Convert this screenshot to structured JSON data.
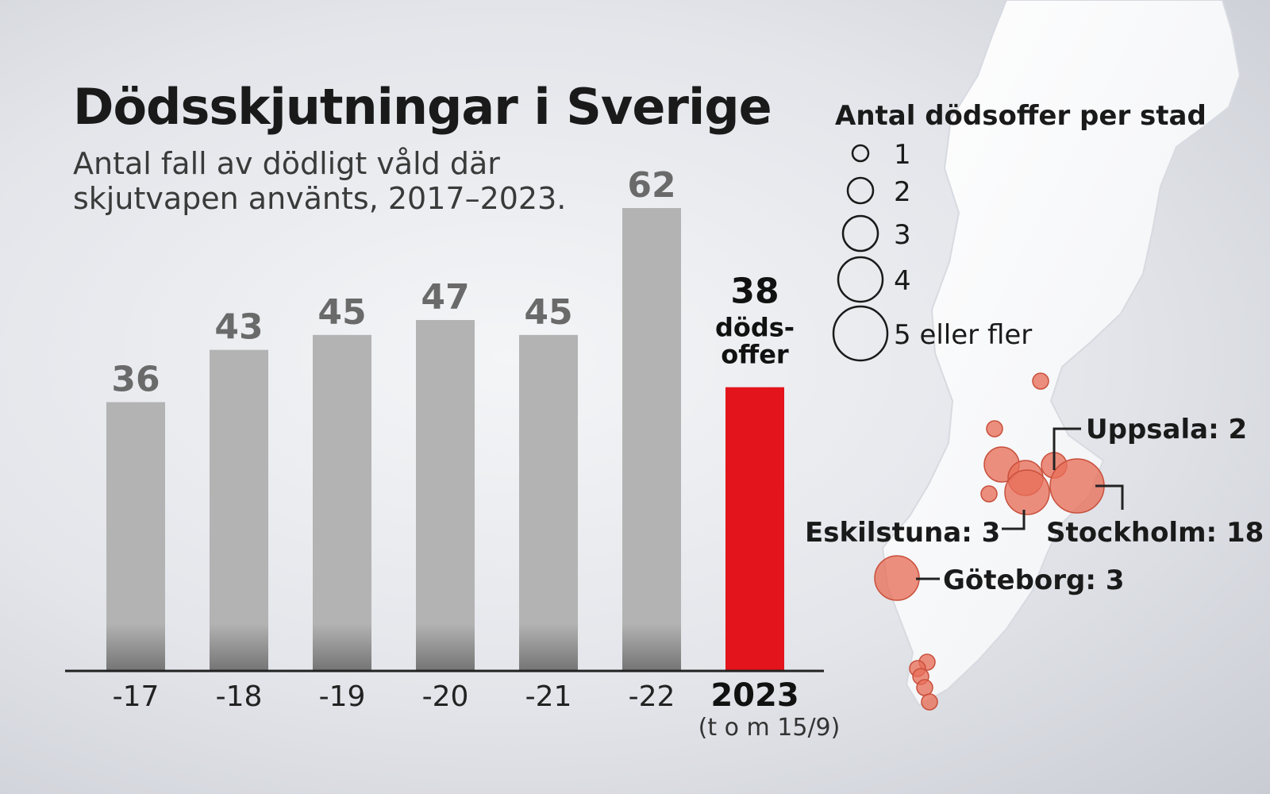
{
  "chart_data": {
    "type": "bar",
    "title": "Dödsskjutningar i Sverige",
    "subtitle_lines": [
      "Antal fall av dödligt våld där",
      "skjutvapen använts, 2017–2023."
    ],
    "categories": [
      "-17",
      "-18",
      "-19",
      "-20",
      "-21",
      "-22",
      "2023"
    ],
    "values": [
      36,
      43,
      45,
      47,
      45,
      62,
      38
    ],
    "highlight_index": 6,
    "highlight_note_lines": [
      "döds-",
      "offer"
    ],
    "highlight_category_note": "(t o m 15/9)",
    "ylim": [
      0,
      62
    ],
    "colors": {
      "bar": "#b3b3b3",
      "highlight": "#e3141b",
      "dot": "#e8705a"
    }
  },
  "map": {
    "legend_title": "Antal dödsoffer per stad",
    "legend_items": [
      {
        "value": 1,
        "label": "1"
      },
      {
        "value": 2,
        "label": "2"
      },
      {
        "value": 3,
        "label": "3"
      },
      {
        "value": 4,
        "label": "4"
      },
      {
        "value": 5,
        "label": "5 eller fler"
      }
    ],
    "cities": [
      {
        "name": "Uppsala",
        "count": 2,
        "label": "Uppsala: 2"
      },
      {
        "name": "Stockholm",
        "count": 18,
        "label": "Stockholm: 18"
      },
      {
        "name": "Eskilstuna",
        "count": 3,
        "label": "Eskilstuna: 3"
      },
      {
        "name": "Göteborg",
        "count": 3,
        "label": "Göteborg: 3"
      }
    ]
  }
}
